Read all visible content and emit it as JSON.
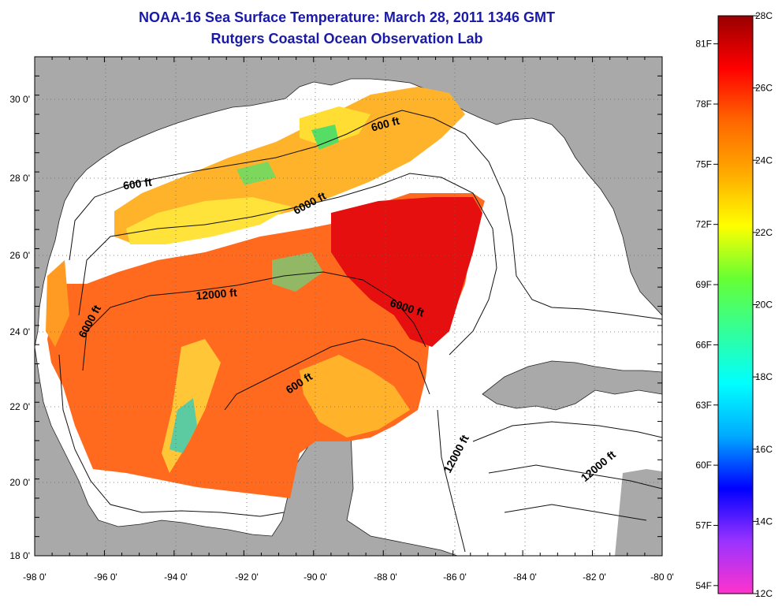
{
  "title_line1": "NOAA-16 Sea Surface Temperature:  March 28, 2011 1346 GMT",
  "title_line2": "Rutgers Coastal Ocean Observation Lab",
  "x_ticks": [
    "-98 0'",
    "-96 0'",
    "-94 0'",
    "-92 0'",
    "-90 0'",
    "-88 0'",
    "-86 0'",
    "-84 0'",
    "-82 0'",
    "-80 0'"
  ],
  "y_ticks": [
    "30 0'",
    "28 0'",
    "26 0'",
    "24 0'",
    "22 0'",
    "20 0'",
    "18 0'"
  ],
  "colorbar": {
    "celsius": [
      "28C",
      "26C",
      "24C",
      "22C",
      "20C",
      "18C",
      "16C",
      "14C",
      "12C"
    ],
    "fahrenheit": [
      "81F",
      "78F",
      "75F",
      "72F",
      "69F",
      "66F",
      "63F",
      "60F",
      "57F",
      "54F"
    ],
    "range_c": [
      12,
      28
    ],
    "stops": [
      "#ff33cc",
      "#9933ff",
      "#0000ff",
      "#00aaff",
      "#00ffff",
      "#33ff99",
      "#66ff33",
      "#ffff00",
      "#ffaa00",
      "#ff6600",
      "#ff0000",
      "#990000"
    ]
  },
  "contour_labels": [
    {
      "text": "600 ft"
    },
    {
      "text": "600 ft"
    },
    {
      "text": "6000 ft"
    },
    {
      "text": "12000 ft"
    },
    {
      "text": "6000 ft"
    },
    {
      "text": "6000 ft"
    },
    {
      "text": "600 ft"
    },
    {
      "text": "12000 ft"
    },
    {
      "text": "12000 ft"
    }
  ],
  "colors": {
    "land": "#a9a9a9",
    "water": "#ffffff",
    "title": "#1a1aa8"
  }
}
